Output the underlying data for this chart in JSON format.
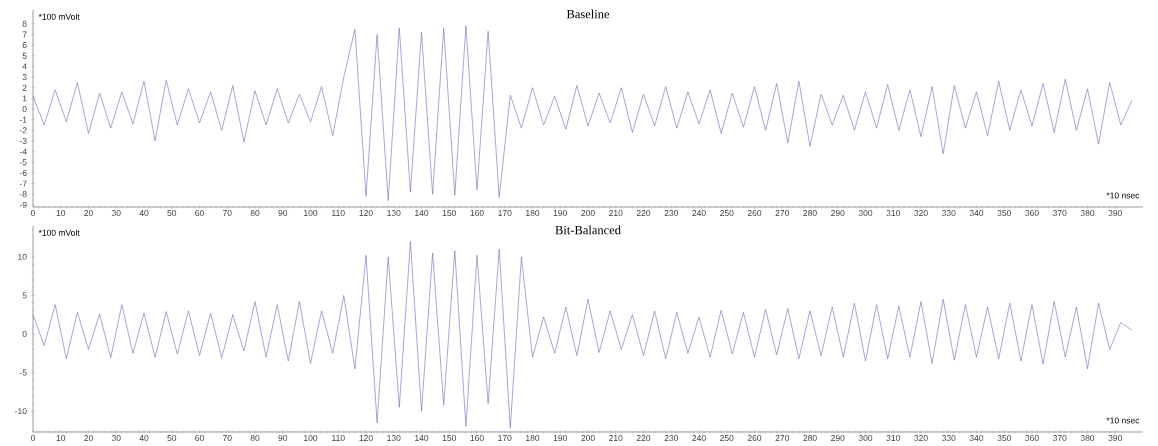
{
  "chart_data": [
    {
      "type": "line",
      "title": "Baseline",
      "xlabel": "*10 nsec",
      "ylabel": "*100 mVolt",
      "x": [
        0,
        4,
        8,
        12,
        16,
        20,
        24,
        28,
        32,
        36,
        40,
        44,
        48,
        52,
        56,
        60,
        64,
        68,
        72,
        76,
        80,
        84,
        88,
        92,
        96,
        100,
        104,
        108,
        112,
        116,
        120,
        124,
        128,
        132,
        136,
        140,
        144,
        148,
        152,
        156,
        160,
        164,
        168,
        172,
        176,
        180,
        184,
        188,
        192,
        196,
        200,
        204,
        208,
        212,
        216,
        220,
        224,
        228,
        232,
        236,
        240,
        244,
        248,
        252,
        256,
        260,
        264,
        268,
        272,
        276,
        280,
        284,
        288,
        292,
        296,
        300,
        304,
        308,
        312,
        316,
        320,
        324,
        328,
        332,
        336,
        340,
        344,
        348,
        352,
        356,
        360,
        364,
        368,
        372,
        376,
        380,
        384,
        388,
        392,
        396
      ],
      "series": [
        {
          "color": "#6b6bbf",
          "values": [
            1.2,
            -1.5,
            1.8,
            -1.2,
            2.5,
            -2.3,
            1.5,
            -1.8,
            1.6,
            -1.4,
            2.6,
            -3.0,
            2.7,
            -1.5,
            1.9,
            -1.3,
            1.6,
            -2.0,
            2.2,
            -3.1,
            1.7,
            -1.5,
            1.9,
            -1.3,
            1.4,
            -1.2,
            2.1,
            -2.5,
            3.0,
            7.5,
            -8.2,
            7.0,
            -8.6,
            7.6,
            -7.8,
            7.2,
            -8.0,
            7.6,
            -8.1,
            7.8,
            -7.6,
            7.3,
            -8.3,
            1.3,
            -1.8,
            2.0,
            -1.5,
            1.2,
            -1.9,
            2.2,
            -1.6,
            1.5,
            -1.3,
            2.0,
            -2.2,
            1.4,
            -1.6,
            2.1,
            -1.8,
            1.6,
            -1.4,
            1.8,
            -2.3,
            1.5,
            -1.7,
            2.1,
            -2.0,
            2.4,
            -3.2,
            2.6,
            -3.5,
            1.4,
            -1.5,
            1.3,
            -2.0,
            1.6,
            -1.8,
            2.3,
            -2.0,
            1.8,
            -2.6,
            2.1,
            -4.2,
            2.2,
            -1.8,
            1.6,
            -2.5,
            2.6,
            -2.0,
            1.8,
            -1.6,
            2.4,
            -2.2,
            2.8,
            -2.0,
            1.9,
            -3.3,
            2.5,
            -1.5,
            0.8
          ]
        }
      ],
      "xlim": [
        0,
        400
      ],
      "ylim": [
        -9.2,
        9.3
      ],
      "xticks": [
        0,
        10,
        20,
        30,
        40,
        50,
        60,
        70,
        80,
        90,
        100,
        110,
        120,
        130,
        140,
        150,
        160,
        170,
        180,
        190,
        200,
        210,
        220,
        230,
        240,
        250,
        260,
        270,
        280,
        290,
        300,
        310,
        320,
        330,
        340,
        350,
        360,
        370,
        380,
        390
      ],
      "yticks": [
        -9,
        -8,
        -7,
        -6,
        -5,
        -4,
        -3,
        -2,
        -1,
        0,
        1,
        2,
        3,
        4,
        5,
        6,
        7,
        8
      ]
    },
    {
      "type": "line",
      "title": "Bit-Balanced",
      "xlabel": "*10 nsec",
      "ylabel": "*100 mVolt",
      "x": [
        0,
        4,
        8,
        12,
        16,
        20,
        24,
        28,
        32,
        36,
        40,
        44,
        48,
        52,
        56,
        60,
        64,
        68,
        72,
        76,
        80,
        84,
        88,
        92,
        96,
        100,
        104,
        108,
        112,
        116,
        120,
        124,
        128,
        132,
        136,
        140,
        144,
        148,
        152,
        156,
        160,
        164,
        168,
        172,
        176,
        180,
        184,
        188,
        192,
        196,
        200,
        204,
        208,
        212,
        216,
        220,
        224,
        228,
        232,
        236,
        240,
        244,
        248,
        252,
        256,
        260,
        264,
        268,
        272,
        276,
        280,
        284,
        288,
        292,
        296,
        300,
        304,
        308,
        312,
        316,
        320,
        324,
        328,
        332,
        336,
        340,
        344,
        348,
        352,
        356,
        360,
        364,
        368,
        372,
        376,
        380,
        384,
        388,
        392,
        396
      ],
      "series": [
        {
          "color": "#6b6bbf",
          "values": [
            2.5,
            -1.5,
            3.8,
            -3.2,
            2.8,
            -2.0,
            2.6,
            -3.1,
            3.8,
            -2.5,
            2.7,
            -3.0,
            2.9,
            -2.6,
            3.0,
            -2.8,
            2.7,
            -3.1,
            2.5,
            -2.2,
            4.2,
            -3.0,
            3.8,
            -3.5,
            4.2,
            -3.8,
            3.0,
            -2.5,
            5.0,
            -4.5,
            10.2,
            -11.5,
            10.0,
            -9.5,
            12.0,
            -10.0,
            10.5,
            -9.2,
            10.8,
            -12.0,
            10.2,
            -9.0,
            11.0,
            -12.2,
            10.0,
            -3.0,
            2.2,
            -2.5,
            3.5,
            -2.8,
            4.5,
            -2.4,
            3.0,
            -2.0,
            2.5,
            -2.8,
            3.0,
            -3.2,
            2.8,
            -2.5,
            2.2,
            -3.0,
            3.1,
            -2.6,
            2.8,
            -3.0,
            3.2,
            -2.7,
            3.3,
            -3.2,
            3.0,
            -2.8,
            3.5,
            -3.0,
            4.0,
            -3.5,
            3.8,
            -3.2,
            3.6,
            -3.0,
            4.2,
            -3.8,
            4.5,
            -3.4,
            3.8,
            -3.0,
            3.5,
            -3.2,
            4.0,
            -3.5,
            3.8,
            -3.9,
            4.2,
            -3.0,
            3.5,
            -4.5,
            4.0,
            -2.0,
            1.5,
            0.5
          ]
        }
      ],
      "xlim": [
        0,
        400
      ],
      "ylim": [
        -12.7,
        14
      ],
      "xticks": [
        0,
        10,
        20,
        30,
        40,
        50,
        60,
        70,
        80,
        90,
        100,
        110,
        120,
        130,
        140,
        150,
        160,
        170,
        180,
        190,
        200,
        210,
        220,
        230,
        240,
        250,
        260,
        270,
        280,
        290,
        300,
        310,
        320,
        330,
        340,
        350,
        360,
        370,
        380,
        390
      ],
      "yticks": [
        -10,
        -5,
        0,
        5,
        10
      ]
    }
  ]
}
